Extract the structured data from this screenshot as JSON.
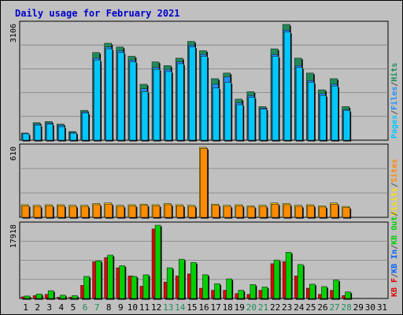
{
  "title": "Daily usage for February 2021",
  "colors": {
    "title": "#0000cc",
    "pages": "#00c8ff",
    "files": "#1e90ff",
    "hits": "#1e8c5a",
    "sites": "#ff8c00",
    "visits": "#ffe000",
    "kb_in": "#0060ff",
    "kb_out": "#00d000",
    "kb_f": "#e00000",
    "weekend_label": "#1e8c5a",
    "plot_bg": "#c0c0c0",
    "grid": "#808080"
  },
  "chart_data": [
    {
      "type": "bar",
      "title": "Pages / Files / Hits",
      "ymax_label": "3106",
      "ylim": [
        0,
        3106
      ],
      "legend": [
        {
          "label": "Pages",
          "color": "#00c8ff"
        },
        {
          "label": "/",
          "color": "#505050"
        },
        {
          "label": "Files",
          "color": "#1e90ff"
        },
        {
          "label": "/",
          "color": "#505050"
        },
        {
          "label": "Hits",
          "color": "#1e8c5a"
        }
      ],
      "categories": [
        "1",
        "2",
        "3",
        "4",
        "5",
        "6",
        "7",
        "8",
        "9",
        "10",
        "11",
        "12",
        "13",
        "14",
        "15",
        "16",
        "17",
        "18",
        "19",
        "20",
        "21",
        "22",
        "23",
        "24",
        "25",
        "26",
        "27",
        "28",
        "29",
        "30",
        "31"
      ],
      "series": [
        {
          "name": "Hits",
          "values": [
            190,
            470,
            500,
            430,
            230,
            800,
            2350,
            2600,
            2500,
            2250,
            1500,
            2100,
            2000,
            2200,
            2650,
            2400,
            1650,
            1800,
            1100,
            1300,
            900,
            2450,
            3106,
            2200,
            1800,
            1350,
            1650,
            900,
            null,
            null,
            null
          ]
        },
        {
          "name": "Files",
          "values": [
            190,
            430,
            460,
            400,
            210,
            760,
            2200,
            2500,
            2400,
            2150,
            1380,
            1950,
            1900,
            2100,
            2550,
            2300,
            1500,
            1700,
            1000,
            1200,
            860,
            2300,
            2950,
            2000,
            1600,
            1250,
            1500,
            820,
            null,
            null,
            null
          ]
        },
        {
          "name": "Pages",
          "values": [
            170,
            400,
            430,
            360,
            190,
            730,
            2150,
            2450,
            2350,
            2100,
            1300,
            1900,
            1840,
            2050,
            2500,
            2250,
            1400,
            1550,
            950,
            1150,
            830,
            2250,
            2900,
            1950,
            1550,
            1200,
            1450,
            800,
            null,
            null,
            null
          ]
        }
      ]
    },
    {
      "type": "bar",
      "title": "Visits / Sites",
      "ymax_label": "610",
      "ylim": [
        0,
        610
      ],
      "legend": [
        {
          "label": "Visits",
          "color": "#ffe000"
        },
        {
          "label": "/",
          "color": "#505050"
        },
        {
          "label": "Sites",
          "color": "#ff8c00"
        }
      ],
      "categories": [
        "1",
        "2",
        "3",
        "4",
        "5",
        "6",
        "7",
        "8",
        "9",
        "10",
        "11",
        "12",
        "13",
        "14",
        "15",
        "16",
        "17",
        "18",
        "19",
        "20",
        "21",
        "22",
        "23",
        "24",
        "25",
        "26",
        "27",
        "28",
        "29",
        "30",
        "31"
      ],
      "series": [
        {
          "name": "Visits",
          "values": [
            110,
            105,
            110,
            110,
            105,
            105,
            120,
            125,
            105,
            110,
            115,
            110,
            120,
            110,
            105,
            610,
            115,
            105,
            110,
            100,
            105,
            125,
            120,
            105,
            110,
            100,
            125,
            95,
            null,
            null,
            null
          ]
        },
        {
          "name": "Sites",
          "values": [
            100,
            95,
            100,
            100,
            95,
            95,
            110,
            115,
            95,
            100,
            105,
            100,
            110,
            100,
            95,
            600,
            105,
            95,
            100,
            90,
            95,
            115,
            110,
            95,
            100,
            90,
            115,
            85,
            null,
            null,
            null
          ]
        }
      ]
    },
    {
      "type": "bar",
      "title": "KB F / KB In / KB Out",
      "ymax_label": "17918",
      "ylim": [
        0,
        17918
      ],
      "legend": [
        {
          "label": "KB F",
          "color": "#e00000"
        },
        {
          "label": "/",
          "color": "#505050"
        },
        {
          "label": "KB In",
          "color": "#0060ff"
        },
        {
          "label": "/",
          "color": "#505050"
        },
        {
          "label": "KB Out",
          "color": "#00d000"
        },
        {
          "label": "/",
          "color": "#505050"
        }
      ],
      "categories": [
        "1",
        "2",
        "3",
        "4",
        "5",
        "6",
        "7",
        "8",
        "9",
        "10",
        "11",
        "12",
        "13",
        "14",
        "15",
        "16",
        "17",
        "18",
        "19",
        "20",
        "21",
        "22",
        "23",
        "24",
        "25",
        "26",
        "27",
        "28",
        "29",
        "30",
        "31"
      ],
      "series": [
        {
          "name": "KB F",
          "values": [
            400,
            700,
            1000,
            300,
            300,
            3200,
            9000,
            10000,
            7500,
            5500,
            3000,
            17000,
            4000,
            5500,
            6000,
            2500,
            2000,
            2000,
            1200,
            1000,
            2000,
            8500,
            9000,
            5500,
            2500,
            1000,
            2000,
            700,
            null,
            null,
            null
          ]
        },
        {
          "name": "KB In",
          "values": [
            60,
            80,
            100,
            60,
            60,
            200,
            300,
            350,
            300,
            250,
            200,
            600,
            300,
            300,
            300,
            150,
            600,
            200,
            150,
            120,
            150,
            400,
            450,
            300,
            200,
            120,
            200,
            80,
            null,
            null,
            null
          ]
        },
        {
          "name": "KB Out",
          "values": [
            600,
            1100,
            1900,
            800,
            700,
            5400,
            9200,
            10600,
            8000,
            5400,
            5800,
            17918,
            7500,
            9600,
            8800,
            5800,
            3600,
            4800,
            2000,
            3400,
            2800,
            9400,
            11300,
            8300,
            3500,
            2900,
            4500,
            1600,
            null,
            null,
            null
          ]
        }
      ]
    }
  ],
  "x_labels": [
    {
      "label": "1",
      "weekend": false
    },
    {
      "label": "2",
      "weekend": false
    },
    {
      "label": "3",
      "weekend": false
    },
    {
      "label": "4",
      "weekend": false
    },
    {
      "label": "5",
      "weekend": false
    },
    {
      "label": "6",
      "weekend": true
    },
    {
      "label": "7",
      "weekend": true
    },
    {
      "label": "8",
      "weekend": false
    },
    {
      "label": "9",
      "weekend": false
    },
    {
      "label": "10",
      "weekend": false
    },
    {
      "label": "11",
      "weekend": false
    },
    {
      "label": "12",
      "weekend": false
    },
    {
      "label": "13",
      "weekend": true
    },
    {
      "label": "14",
      "weekend": true
    },
    {
      "label": "15",
      "weekend": false
    },
    {
      "label": "16",
      "weekend": false
    },
    {
      "label": "17",
      "weekend": false
    },
    {
      "label": "18",
      "weekend": false
    },
    {
      "label": "19",
      "weekend": false
    },
    {
      "label": "20",
      "weekend": true
    },
    {
      "label": "21",
      "weekend": true
    },
    {
      "label": "22",
      "weekend": false
    },
    {
      "label": "23",
      "weekend": false
    },
    {
      "label": "24",
      "weekend": false
    },
    {
      "label": "25",
      "weekend": false
    },
    {
      "label": "26",
      "weekend": false
    },
    {
      "label": "27",
      "weekend": true
    },
    {
      "label": "28",
      "weekend": true
    },
    {
      "label": "29",
      "weekend": false
    },
    {
      "label": "30",
      "weekend": false
    },
    {
      "label": "31",
      "weekend": false
    }
  ]
}
